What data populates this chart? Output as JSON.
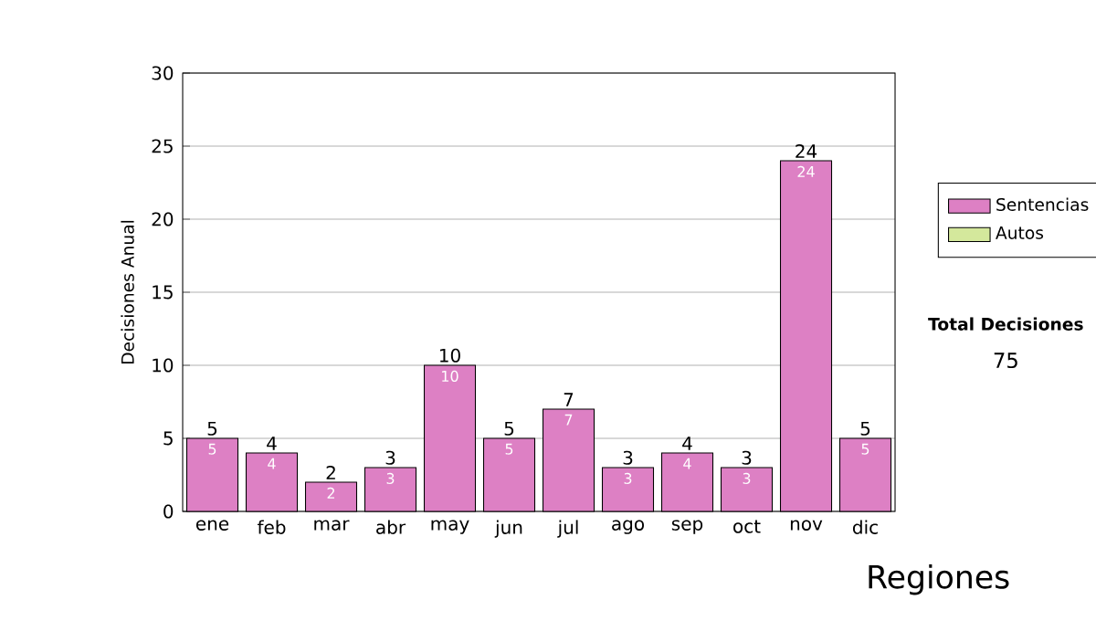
{
  "chart_data": {
    "type": "bar",
    "stacked": true,
    "ylabel": "Decisiones Anual",
    "categories": [
      "ene",
      "feb",
      "mar",
      "abr",
      "may",
      "jun",
      "jul",
      "ago",
      "sep",
      "oct",
      "nov",
      "dic"
    ],
    "series": [
      {
        "name": "Sentencias",
        "color": "#dd80c4",
        "values": [
          5,
          4,
          2,
          3,
          10,
          5,
          7,
          3,
          4,
          3,
          24,
          5
        ],
        "value_labels": [
          "5",
          "4",
          "2",
          "3",
          "10",
          "5",
          "7",
          "3",
          "4",
          "3",
          "24",
          "5"
        ]
      },
      {
        "name": "Autos",
        "color": "#d4e89c",
        "values": [
          0,
          0,
          0,
          0,
          0,
          0,
          0,
          0,
          0,
          0,
          0,
          0
        ]
      }
    ],
    "totals": [
      "5",
      "4",
      "2",
      "3",
      "10",
      "5",
      "7",
      "3",
      "4",
      "3",
      "24",
      "5"
    ],
    "ylim": [
      0,
      30
    ],
    "yticks": [
      0,
      5,
      10,
      15,
      20,
      25,
      30
    ],
    "grid": "y",
    "legend": "right",
    "annotations": [
      "Total Decisiones",
      "75",
      "Regiones"
    ]
  }
}
